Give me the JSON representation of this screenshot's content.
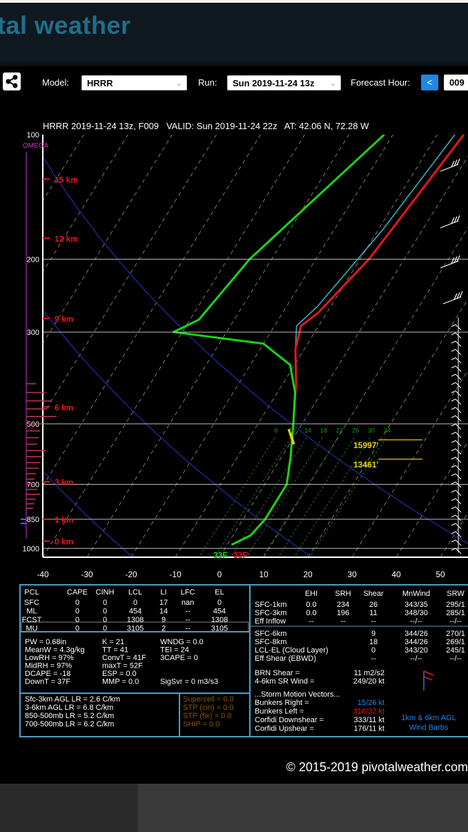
{
  "site": {
    "brand": "tal weather"
  },
  "toolbar": {
    "model_label": "Model:",
    "model_value": "HRRR",
    "run_label": "Run:",
    "run_value": "Sun 2019-11-24 13z",
    "hour_label": "Forecast Hour:",
    "prev_symbol": "<",
    "hour_value": "009"
  },
  "colors": {
    "temp": "#e8151f",
    "dewpoint": "#16d616",
    "wetbulb": "#39b9c8",
    "parcel": "#1aa0d0",
    "omega": "#cc33cc",
    "accent": "#1e88e5"
  },
  "chart_data": {
    "type": "skewt",
    "title": "HRRR 2019-11-24 13z, F009   VALID: Sun 2019-11-24 22z   AT: 42.06 N, 72.28 W",
    "xlim": [
      -40,
      50
    ],
    "x_ticks": [
      "-40",
      "-30",
      "-20",
      "-10",
      "0",
      "10",
      "20",
      "30",
      "40",
      "50"
    ],
    "pressure_levels": [
      100,
      200,
      300,
      500,
      700,
      850,
      1000
    ],
    "pressure_labels": [
      "100",
      "200",
      "300",
      "500",
      "700",
      "850",
      "1000"
    ],
    "height_markers": [
      {
        "label": "15 km",
        "p": 128
      },
      {
        "label": "12 km",
        "p": 178
      },
      {
        "label": "9 km",
        "p": 278
      },
      {
        "label": "6 km",
        "p": 455
      },
      {
        "label": "3 km",
        "p": 690
      },
      {
        "label": "1 km",
        "p": 850
      },
      {
        "label": "0 km",
        "p": 960
      }
    ],
    "omega_label": "OMEGA",
    "temperature": [
      [
        -4,
        100
      ],
      [
        -7,
        170
      ],
      [
        -8,
        200
      ],
      [
        -12,
        270
      ],
      [
        -14,
        290
      ],
      [
        -12,
        330
      ],
      [
        -7,
        400
      ],
      [
        -2,
        500
      ],
      [
        2,
        600
      ],
      [
        5,
        700
      ],
      [
        5,
        850
      ],
      [
        4,
        930
      ],
      [
        1,
        980
      ]
    ],
    "dewpoint": [
      [
        -22,
        100
      ],
      [
        -35,
        200
      ],
      [
        -38,
        280
      ],
      [
        -42,
        300
      ],
      [
        -20,
        320
      ],
      [
        -11,
        360
      ],
      [
        -6,
        420
      ],
      [
        -2,
        500
      ],
      [
        2,
        600
      ],
      [
        5,
        700
      ],
      [
        5,
        850
      ],
      [
        4,
        930
      ],
      [
        1,
        980
      ]
    ],
    "wetbulb": [
      [
        -6,
        100
      ],
      [
        -9,
        170
      ],
      [
        -11,
        210
      ],
      [
        -13,
        260
      ],
      [
        -15,
        290
      ],
      [
        -12,
        330
      ],
      [
        -7,
        400
      ],
      [
        -2,
        500
      ],
      [
        2,
        600
      ],
      [
        5,
        700
      ],
      [
        5,
        850
      ],
      [
        4,
        930
      ],
      [
        1,
        980
      ]
    ],
    "surface_temp_label": "33F",
    "surface_dew_label": "33F",
    "hgz_labels": [
      "15997'",
      "13461'"
    ],
    "mixing_ratio_labels": [
      "6",
      "10",
      "14",
      "18",
      "22",
      "26",
      "30",
      "34"
    ],
    "params": {
      "headers": [
        "PCL",
        "CAPE",
        "CINH",
        "LCL",
        "LI",
        "LFC",
        "EL"
      ],
      "rows": [
        [
          "SFC",
          "0",
          "0",
          "0",
          "17",
          "nan",
          "0"
        ],
        [
          "ML",
          "0",
          "0",
          "454",
          "14",
          "--",
          "454"
        ],
        [
          "FCST",
          "0",
          "0",
          "1308",
          "9",
          "--",
          "1308"
        ],
        [
          "MU",
          "0",
          "0",
          "3105",
          "2",
          "--",
          "3105"
        ]
      ],
      "indices": [
        [
          "PW = 0.68in",
          "K = 21",
          "WNDG = 0.0"
        ],
        [
          "MeanW = 4.3g/kg",
          "TT = 41",
          "TEI = 24"
        ],
        [
          "LowRH = 97%",
          "ConvT = 41F",
          "3CAPE = 0"
        ],
        [
          "MidRH = 97%",
          "maxT = 52F",
          ""
        ],
        [
          "DCAPE = -18",
          "ESP = 0.0",
          ""
        ],
        [
          "DownT = 37F",
          "MMP = 0.0",
          "SigSvr = 0 m3/s3"
        ]
      ],
      "lapse_rates": [
        "Sfc-3km AGL LR = 2.6 C/km",
        "3-6km AGL LR = 6.8 C/km",
        "850-500mb LR = 5.2 C/km",
        "700-500mb LR = 6.2 C/km"
      ],
      "composites": [
        "Supercell = 0.0",
        "STP (cin) = 0.0",
        "STP (fix) = 0.0",
        "SHIP = 0.0"
      ]
    },
    "kinematics": {
      "headers": [
        "EHI",
        "SRH",
        "Shear",
        "MnWind",
        "SRW"
      ],
      "rows": [
        [
          "SFC-1km",
          "0.0",
          "234",
          "26",
          "343/35",
          "295/1"
        ],
        [
          "SFC-3km",
          "0.0",
          "196",
          "11",
          "348/30",
          "285/1"
        ],
        [
          "Eff Inflow",
          "--",
          "--",
          "--",
          "--/--",
          "--/--"
        ],
        [
          "SFC-6km",
          "",
          "",
          "9",
          "344/26",
          "270/1"
        ],
        [
          "SFC-8km",
          "",
          "",
          "18",
          "344/26",
          "269/1"
        ],
        [
          "LCL-EL (Cloud Layer)",
          "",
          "",
          "0",
          "343/20",
          "245/1"
        ],
        [
          "Eff Shear (EBWD)",
          "",
          "",
          "--",
          "--/--",
          "--/--"
        ]
      ],
      "brn_shear": [
        "BRN Shear =",
        "11 m2/s2"
      ],
      "sr_wind": [
        "4-6km SR Wind =",
        "249/20 kt"
      ],
      "storm_motion_title": "...Storm Motion Vectors...",
      "storm_motion": [
        [
          "Bunkers Right =",
          "15/26 kt"
        ],
        [
          "Bunkers Left =",
          "316/32 kt"
        ],
        [
          "Corfidi Downshear =",
          "333/11 kt"
        ],
        [
          "Corfidi Upshear =",
          "176/11 kt"
        ]
      ],
      "barb_legend": [
        "1km & 6km AGL",
        "Wind Barbs"
      ]
    },
    "copyright": "© 2015-2019 pivotalweather.com"
  }
}
